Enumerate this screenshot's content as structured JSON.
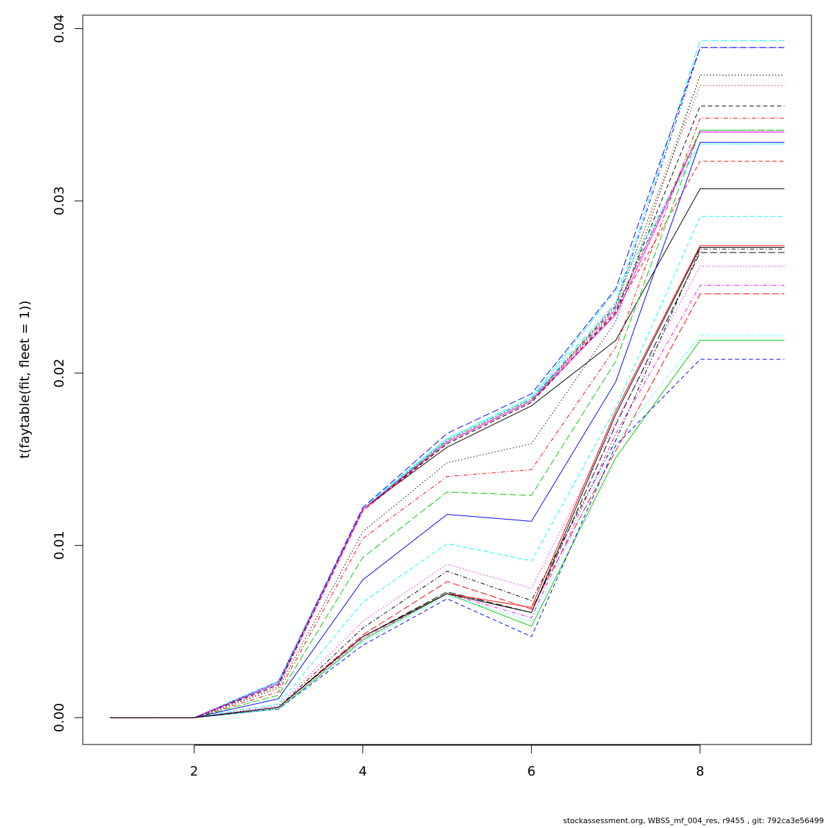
{
  "chart_data": {
    "type": "line",
    "title": "",
    "xlabel": "",
    "ylabel": "t(faytable(fit, fleet = 1))",
    "xlim": [
      0.68,
      9.32
    ],
    "ylim": [
      -0.00156,
      0.04078
    ],
    "x": [
      1,
      2,
      3,
      4,
      5,
      6,
      7,
      8,
      9
    ],
    "x_ticks": [
      "2",
      "4",
      "6",
      "8"
    ],
    "x_tick_values": [
      2,
      4,
      6,
      8
    ],
    "y_ticks": [
      "0.00",
      "0.01",
      "0.02",
      "0.03",
      "0.04"
    ],
    "y_tick_values": [
      0,
      0.01,
      0.02,
      0.03,
      0.04
    ],
    "grid": false,
    "legend": "none",
    "series": [
      {
        "color": "#000000",
        "dash": "solid",
        "values": [
          0,
          0,
          0.0021,
          0.0121,
          0.0157,
          0.0181,
          0.0219,
          0.0307,
          0.0307
        ]
      },
      {
        "color": "#ff0000",
        "dash": "dashed",
        "values": [
          0,
          0,
          0.0019,
          0.012,
          0.0159,
          0.0183,
          0.0236,
          0.0323,
          0.0323
        ]
      },
      {
        "color": "#00cd00",
        "dash": "dotted",
        "values": [
          0,
          0,
          0.002,
          0.0121,
          0.016,
          0.0184,
          0.0238,
          0.0373,
          0.0373
        ]
      },
      {
        "color": "#0000ff",
        "dash": "dotdash",
        "values": [
          0,
          0,
          0.0021,
          0.0121,
          0.0161,
          0.0185,
          0.0239,
          0.0389,
          0.0389
        ]
      },
      {
        "color": "#00ffff",
        "dash": "longdash",
        "values": [
          0,
          0,
          0.0021,
          0.0122,
          0.0162,
          0.0186,
          0.0241,
          0.0393,
          0.0393
        ]
      },
      {
        "color": "#ff00ff",
        "dash": "twodash",
        "values": [
          0,
          0,
          0.002,
          0.0121,
          0.016,
          0.0184,
          0.0237,
          0.034,
          0.034
        ]
      },
      {
        "color": "#000000",
        "dash": "dashed",
        "values": [
          0,
          0,
          0.0019,
          0.0121,
          0.0159,
          0.0183,
          0.0235,
          0.0355,
          0.0355
        ]
      },
      {
        "color": "#ff0000",
        "dash": "dotted",
        "values": [
          0,
          0,
          0.0018,
          0.012,
          0.016,
          0.0184,
          0.024,
          0.0367,
          0.0367
        ]
      },
      {
        "color": "#00cd00",
        "dash": "dotdash",
        "values": [
          0,
          0,
          0.002,
          0.0121,
          0.0161,
          0.0185,
          0.0238,
          0.0341,
          0.0341
        ]
      },
      {
        "color": "#0000ff",
        "dash": "longdash",
        "values": [
          0,
          0,
          0.0021,
          0.0122,
          0.0165,
          0.0188,
          0.0249,
          0.0389,
          0.0389
        ]
      },
      {
        "color": "#00ffff",
        "dash": "twodash",
        "values": [
          0,
          0,
          0.0021,
          0.0121,
          0.0162,
          0.0186,
          0.0248,
          0.0333,
          0.0333
        ]
      },
      {
        "color": "#ff00ff",
        "dash": "solid",
        "values": [
          0,
          0,
          0.002,
          0.0121,
          0.016,
          0.0184,
          0.0234,
          0.034,
          0.034
        ]
      },
      {
        "color": "#000000",
        "dash": "dotted",
        "values": [
          0,
          0,
          0.0017,
          0.0108,
          0.0148,
          0.0159,
          0.023,
          0.0373,
          0.0373
        ]
      },
      {
        "color": "#ff0000",
        "dash": "dotdash",
        "values": [
          0,
          0,
          0.0015,
          0.0104,
          0.014,
          0.0144,
          0.0215,
          0.0348,
          0.0348
        ]
      },
      {
        "color": "#00cd00",
        "dash": "longdash",
        "values": [
          0,
          0,
          0.0013,
          0.0093,
          0.0131,
          0.0129,
          0.0207,
          0.0341,
          0.0341
        ]
      },
      {
        "color": "#0000ff",
        "dash": "solid",
        "values": [
          0,
          0,
          0.0011,
          0.008,
          0.0118,
          0.0114,
          0.0195,
          0.0334,
          0.0334
        ]
      },
      {
        "color": "#00ffff",
        "dash": "dashed",
        "values": [
          0,
          0,
          0.0008,
          0.0067,
          0.0101,
          0.0091,
          0.018,
          0.0291,
          0.0291
        ]
      },
      {
        "color": "#ff00ff",
        "dash": "dotted",
        "values": [
          0,
          0,
          0.0007,
          0.0056,
          0.0089,
          0.0075,
          0.0172,
          0.0262,
          0.0262
        ]
      },
      {
        "color": "#000000",
        "dash": "dotdash",
        "values": [
          0,
          0,
          0.0006,
          0.0052,
          0.0085,
          0.0068,
          0.0161,
          0.0272,
          0.0272
        ]
      },
      {
        "color": "#ff0000",
        "dash": "longdash",
        "values": [
          0,
          0,
          0.0006,
          0.0048,
          0.0079,
          0.0063,
          0.0155,
          0.0246,
          0.0246
        ]
      },
      {
        "color": "#00cd00",
        "dash": "solid",
        "values": [
          0,
          0,
          0.0005,
          0.0045,
          0.0072,
          0.0053,
          0.0151,
          0.0219,
          0.0219
        ]
      },
      {
        "color": "#0000ff",
        "dash": "dashed",
        "values": [
          0,
          0,
          0.0005,
          0.0042,
          0.0069,
          0.0047,
          0.0158,
          0.0208,
          0.0208
        ]
      },
      {
        "color": "#00ffff",
        "dash": "dotted",
        "values": [
          0,
          0,
          0.0005,
          0.0044,
          0.0071,
          0.0056,
          0.016,
          0.0222,
          0.0222
        ]
      },
      {
        "color": "#ff00ff",
        "dash": "dotdash",
        "values": [
          0,
          0,
          0.0006,
          0.0046,
          0.0072,
          0.0058,
          0.0165,
          0.0251,
          0.0251
        ]
      },
      {
        "color": "#000000",
        "dash": "longdash",
        "values": [
          0,
          0,
          0.0006,
          0.0047,
          0.0073,
          0.0061,
          0.017,
          0.027,
          0.027
        ]
      },
      {
        "color": "#ff0000",
        "dash": "solid",
        "values": [
          0,
          0,
          0.0006,
          0.0047,
          0.0072,
          0.0064,
          0.0178,
          0.0274,
          0.0274
        ]
      },
      {
        "color": "#000000",
        "dash": "solid",
        "values": [
          0,
          0,
          0.0006,
          0.0047,
          0.0072,
          0.0061,
          0.0176,
          0.0273,
          0.0273
        ]
      }
    ]
  },
  "footer": {
    "text": "stockassessment.org, WBSS_mf_004_res, r9455 , git: 792ca3e56499"
  }
}
